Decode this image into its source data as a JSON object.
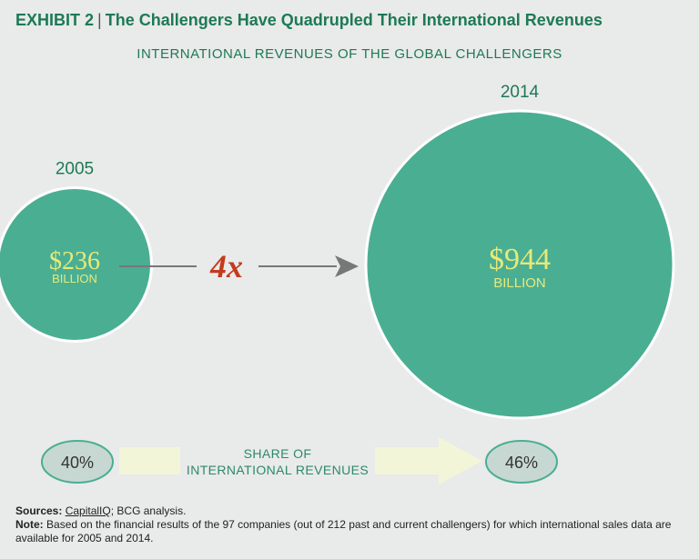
{
  "header": {
    "exhibit_label": "EXHIBIT 2",
    "separator": "|",
    "title": "The Challengers Have Quadrupled Their International Revenues"
  },
  "chart_data": {
    "type": "bubble",
    "title": "INTERNATIONAL REVENUES OF THE GLOBAL CHALLENGERS",
    "unit": "BILLION",
    "series": [
      {
        "year": "2005",
        "value": 236,
        "label": "$236",
        "unit": "BILLION"
      },
      {
        "year": "2014",
        "value": 944,
        "label": "$944",
        "unit": "BILLION"
      }
    ],
    "multiplier": "4x",
    "share": {
      "label_line1": "SHARE OF",
      "label_line2": "INTERNATIONAL REVENUES",
      "values": [
        {
          "year": "2005",
          "value": 40,
          "label": "40%"
        },
        {
          "year": "2014",
          "value": 46,
          "label": "46%"
        }
      ]
    }
  },
  "footer": {
    "sources_label": "Sources:",
    "sources_text_1": "CapitalIQ",
    "sources_text_2": "; BCG analysis.",
    "note_label": "Note:",
    "note_text": "Based on the financial results of the 97 companies (out of 212 past and current challengers) for which international sales data are available for 2005 and 2014."
  },
  "colors": {
    "bubble": "#4aae93",
    "bubble_text": "#e6ea7a",
    "title": "#1d7a55",
    "multiplier": "#c43b1e",
    "share_pill": "#c7d8d2",
    "share_arrow": "#f3f5d8"
  }
}
